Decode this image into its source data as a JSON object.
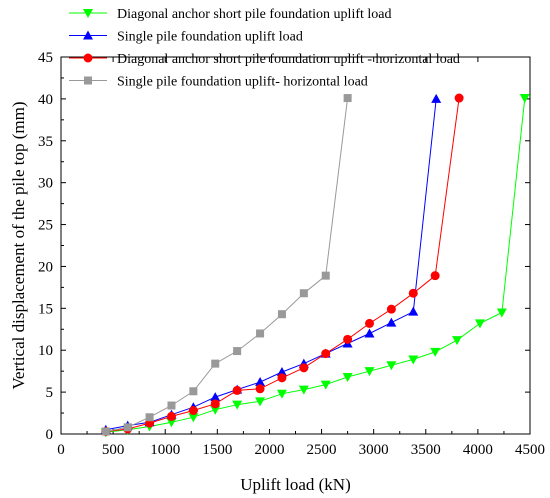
{
  "chart_data": {
    "type": "line",
    "xlabel": "Uplift load (kN)",
    "ylabel": "Vertical displacement of the pile top (mm)",
    "xlim": [
      0,
      4500
    ],
    "ylim": [
      0,
      45
    ],
    "xticks": [
      0,
      500,
      1000,
      1500,
      2000,
      2500,
      3000,
      3500,
      4000,
      4500
    ],
    "yticks": [
      0,
      5,
      10,
      15,
      20,
      25,
      30,
      35,
      40,
      45
    ],
    "grid": false,
    "legend_position": "top-left",
    "series": [
      {
        "name": "Diagonal anchor short pile foundation uplift load",
        "color": "#00ff00",
        "marker": "triangle-down",
        "points": [
          [
            430,
            0.2
          ],
          [
            640,
            0.5
          ],
          [
            850,
            0.9
          ],
          [
            1060,
            1.4
          ],
          [
            1270,
            2.0
          ],
          [
            1480,
            2.9
          ],
          [
            1690,
            3.5
          ],
          [
            1910,
            3.9
          ],
          [
            2120,
            4.8
          ],
          [
            2330,
            5.3
          ],
          [
            2540,
            5.9
          ],
          [
            2750,
            6.8
          ],
          [
            2960,
            7.5
          ],
          [
            3170,
            8.2
          ],
          [
            3380,
            8.9
          ],
          [
            3590,
            9.8
          ],
          [
            3800,
            11.2
          ],
          [
            4020,
            13.2
          ],
          [
            4230,
            14.5
          ],
          [
            4450,
            40.1
          ]
        ]
      },
      {
        "name": "Single pile foundation uplift load",
        "color": "#0000ff",
        "marker": "triangle-up",
        "points": [
          [
            430,
            0.5
          ],
          [
            640,
            1.0
          ],
          [
            850,
            1.4
          ],
          [
            1060,
            2.3
          ],
          [
            1270,
            3.2
          ],
          [
            1480,
            4.4
          ],
          [
            1690,
            5.3
          ],
          [
            1910,
            6.2
          ],
          [
            2120,
            7.4
          ],
          [
            2330,
            8.4
          ],
          [
            2540,
            9.6
          ],
          [
            2750,
            10.8
          ],
          [
            2960,
            12.0
          ],
          [
            3170,
            13.3
          ],
          [
            3380,
            14.6
          ],
          [
            3600,
            40.0
          ]
        ]
      },
      {
        "name": "Diagonal anchor short pile foundation uplift - horizontal load",
        "color": "#ff0000",
        "marker": "circle",
        "points": [
          [
            430,
            0.3
          ],
          [
            640,
            0.6
          ],
          [
            850,
            1.3
          ],
          [
            1060,
            2.1
          ],
          [
            1270,
            2.8
          ],
          [
            1480,
            3.6
          ],
          [
            1690,
            5.2
          ],
          [
            1910,
            5.4
          ],
          [
            2120,
            6.7
          ],
          [
            2330,
            7.9
          ],
          [
            2540,
            9.6
          ],
          [
            2750,
            11.3
          ],
          [
            2960,
            13.2
          ],
          [
            3170,
            14.9
          ],
          [
            3380,
            16.8
          ],
          [
            3590,
            18.9
          ],
          [
            3820,
            40.1
          ]
        ]
      },
      {
        "name": "Single pile foundation uplift- horizontal load",
        "color": "#999999",
        "marker": "square",
        "points": [
          [
            430,
            0.3
          ],
          [
            640,
            0.8
          ],
          [
            850,
            2.0
          ],
          [
            1060,
            3.4
          ],
          [
            1270,
            5.1
          ],
          [
            1480,
            8.4
          ],
          [
            1690,
            9.9
          ],
          [
            1910,
            12.0
          ],
          [
            2120,
            14.3
          ],
          [
            2330,
            16.8
          ],
          [
            2540,
            18.9
          ],
          [
            2750,
            40.1
          ]
        ]
      }
    ]
  }
}
